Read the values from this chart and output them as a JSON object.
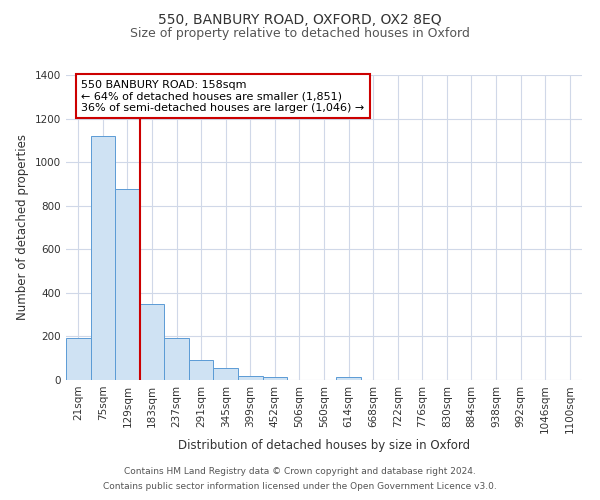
{
  "title": "550, BANBURY ROAD, OXFORD, OX2 8EQ",
  "subtitle": "Size of property relative to detached houses in Oxford",
  "xlabel": "Distribution of detached houses by size in Oxford",
  "ylabel": "Number of detached properties",
  "bar_color": "#cfe2f3",
  "bar_edge_color": "#5b9bd5",
  "background_color": "#ffffff",
  "grid_color": "#d0d8e8",
  "categories": [
    "21sqm",
    "75sqm",
    "129sqm",
    "183sqm",
    "237sqm",
    "291sqm",
    "345sqm",
    "399sqm",
    "452sqm",
    "506sqm",
    "560sqm",
    "614sqm",
    "668sqm",
    "722sqm",
    "776sqm",
    "830sqm",
    "884sqm",
    "938sqm",
    "992sqm",
    "1046sqm",
    "1100sqm"
  ],
  "values": [
    193,
    1120,
    875,
    350,
    193,
    93,
    55,
    20,
    12,
    0,
    0,
    12,
    0,
    0,
    0,
    0,
    0,
    0,
    0,
    0,
    0
  ],
  "red_line_x": 2.5,
  "annotation_line1": "550 BANBURY ROAD: 158sqm",
  "annotation_line2": "← 64% of detached houses are smaller (1,851)",
  "annotation_line3": "36% of semi-detached houses are larger (1,046) →",
  "annotation_box_edge_color": "#cc0000",
  "annotation_text_color": "#000000",
  "ylim": [
    0,
    1400
  ],
  "yticks": [
    0,
    200,
    400,
    600,
    800,
    1000,
    1200,
    1400
  ],
  "footer_line1": "Contains HM Land Registry data © Crown copyright and database right 2024.",
  "footer_line2": "Contains public sector information licensed under the Open Government Licence v3.0.",
  "title_fontsize": 10,
  "subtitle_fontsize": 9,
  "axis_label_fontsize": 8.5,
  "tick_fontsize": 7.5,
  "annotation_fontsize": 8,
  "footer_fontsize": 6.5
}
